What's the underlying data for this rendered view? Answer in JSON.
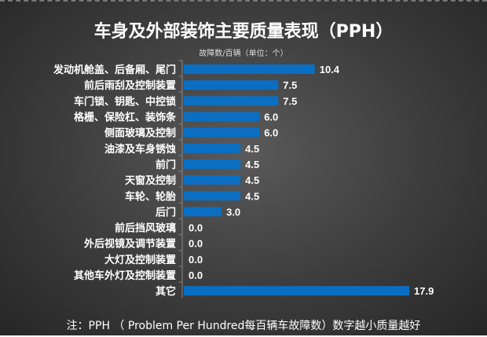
{
  "chart_data": {
    "type": "bar",
    "orientation": "horizontal",
    "title": "车身及外部装饰主要质量表现（PPH）",
    "unit_label": "故障数/百辆（单位：个）",
    "note": "注：PPH （ Problem Per Hundred每百辆车故障数）数字越小质量越好",
    "categories": [
      "发动机舱盖、后备厢、尾门",
      "前后雨刮及控制装置",
      "车门锁、钥匙、中控锁",
      "格栅、保险杠、装饰条",
      "侧面玻璃及控制",
      "油漆及车身锈蚀",
      "前门",
      "天窗及控制",
      "车轮、轮胎",
      "后门",
      "前后挡风玻璃",
      "外后视镜及调节装置",
      "大灯及控制装置",
      "其他车外灯及控制装置",
      "其它"
    ],
    "values": [
      10.4,
      7.5,
      7.5,
      6.0,
      6.0,
      4.5,
      4.5,
      4.5,
      4.5,
      3.0,
      0.0,
      0.0,
      0.0,
      0.0,
      17.9
    ],
    "value_labels": [
      "10.4",
      "7.5",
      "7.5",
      "6.0",
      "6.0",
      "4.5",
      "4.5",
      "4.5",
      "4.5",
      "3.0",
      "0.0",
      "0.0",
      "0.0",
      "0.0",
      "17.9"
    ],
    "xlim": [
      0,
      18
    ],
    "grid": false,
    "legend": "none",
    "bar_color": "#0a6fc2"
  }
}
